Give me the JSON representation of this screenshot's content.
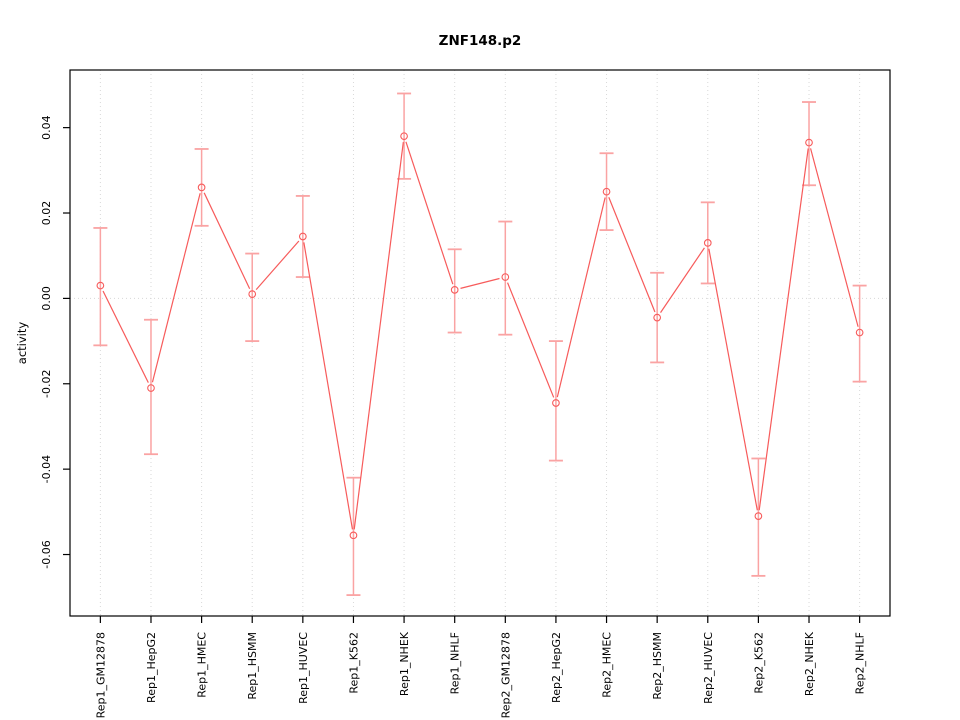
{
  "chart_data": {
    "type": "line",
    "title": "ZNF148.p2",
    "ylabel": "activity",
    "xlabel": "",
    "legend": "none",
    "grid": "vertical dotted gridline at each category; horizontal dotted line at y=0",
    "categories": [
      "Rep1_GM12878",
      "Rep1_HepG2",
      "Rep1_HMEC",
      "Rep1_HSMM",
      "Rep1_HUVEC",
      "Rep1_K562",
      "Rep1_NHEK",
      "Rep1_NHLF",
      "Rep2_GM12878",
      "Rep2_HepG2",
      "Rep2_HMEC",
      "Rep2_HSMM",
      "Rep2_HUVEC",
      "Rep2_K562",
      "Rep2_NHEK",
      "Rep2_NHLF"
    ],
    "values": [
      0.003,
      -0.021,
      0.026,
      0.001,
      0.0145,
      -0.0555,
      0.038,
      0.002,
      0.005,
      -0.0245,
      0.025,
      -0.0045,
      0.013,
      -0.051,
      0.0365,
      -0.008
    ],
    "error_low": [
      -0.011,
      -0.0365,
      0.017,
      -0.01,
      0.005,
      -0.0695,
      0.028,
      -0.008,
      -0.0085,
      -0.038,
      0.016,
      -0.015,
      0.0035,
      -0.065,
      0.0265,
      -0.0195
    ],
    "error_high": [
      0.0165,
      -0.005,
      0.035,
      0.0105,
      0.024,
      -0.042,
      0.048,
      0.0115,
      0.018,
      -0.01,
      0.034,
      0.006,
      0.0225,
      -0.0375,
      0.046,
      0.003
    ],
    "yticks": [
      {
        "value": -0.06,
        "label": "-0.06"
      },
      {
        "value": -0.04,
        "label": "-0.04"
      },
      {
        "value": -0.02,
        "label": "-0.02"
      },
      {
        "value": 0.0,
        "label": "0.00"
      },
      {
        "value": 0.02,
        "label": "0.02"
      },
      {
        "value": 0.04,
        "label": "0.04"
      }
    ],
    "ylim": [
      -0.0744,
      0.0535
    ],
    "x_range": [
      0.4,
      16.6
    ],
    "zero_line": 0,
    "colors": {
      "line": "#f75b5b",
      "marker": "#f75b5b",
      "error_bar": "#faa3a3",
      "grid": "#d8d8d8",
      "axis": "#000000",
      "background": "#ffffff"
    }
  }
}
